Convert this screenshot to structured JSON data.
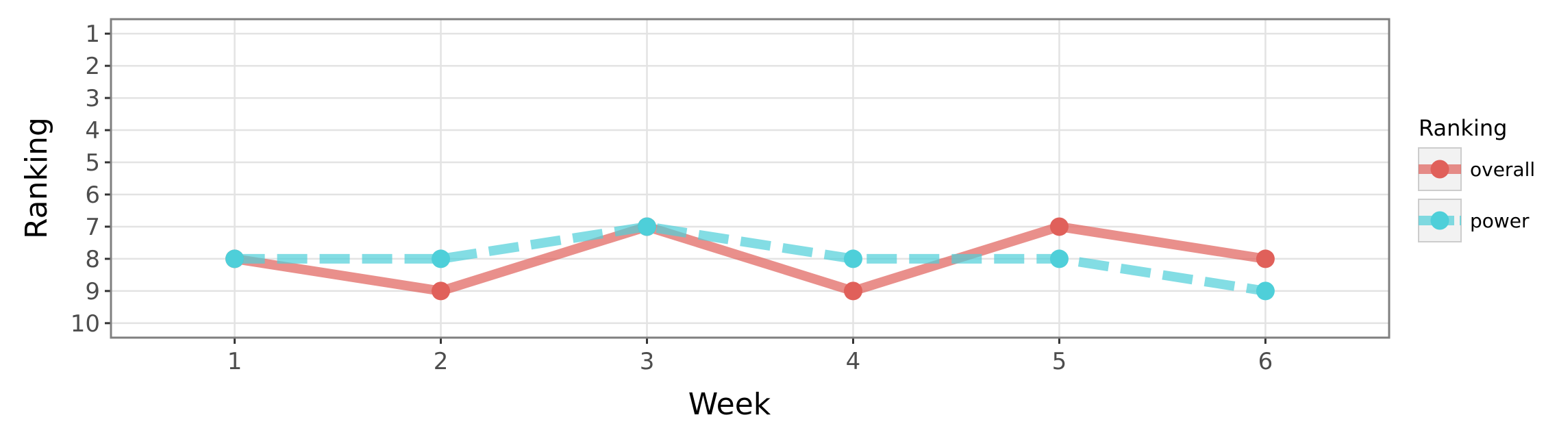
{
  "chart_data": {
    "type": "line",
    "xlabel": "Week",
    "ylabel": "Ranking",
    "x": [
      1,
      2,
      3,
      4,
      5,
      6
    ],
    "x_ticks": [
      "1",
      "2",
      "3",
      "4",
      "5",
      "6"
    ],
    "y_ticks": [
      "1",
      "2",
      "3",
      "4",
      "5",
      "6",
      "7",
      "8",
      "9",
      "10"
    ],
    "xlim": [
      0.4,
      6.6
    ],
    "ylim": [
      10.45,
      0.55
    ],
    "y_reversed": true,
    "grid": true,
    "legend_title": "Ranking",
    "legend_position": "right",
    "series": [
      {
        "name": "overall",
        "values": [
          8,
          9,
          7,
          9,
          7,
          8
        ],
        "color": "#E0605A",
        "line_style": "solid"
      },
      {
        "name": "power",
        "values": [
          8,
          8,
          7,
          8,
          8,
          9
        ],
        "color": "#4ECFD9",
        "line_style": "dashed"
      }
    ]
  }
}
